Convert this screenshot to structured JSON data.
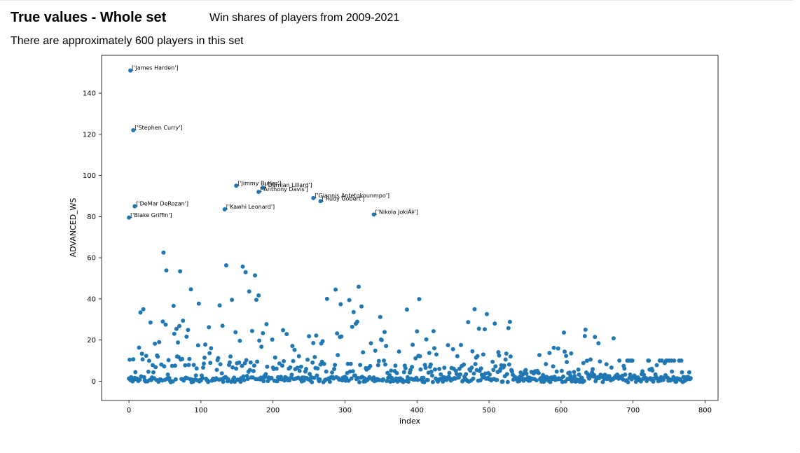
{
  "header": {
    "title": "True values - Whole set",
    "subtitle": "Win shares of players from 2009-2021",
    "description": "There are approximately 600 players in this set"
  },
  "chart_data": {
    "type": "scatter",
    "xlabel": "index",
    "ylabel": "ADVANCED_WS",
    "xlim": [
      -38,
      818
    ],
    "ylim": [
      -9.4,
      158.4
    ],
    "xticks": [
      0,
      100,
      200,
      300,
      400,
      500,
      600,
      700,
      800
    ],
    "yticks": [
      0,
      20,
      40,
      60,
      80,
      100,
      120,
      140
    ],
    "grid": false,
    "point_color": "#1f77b4",
    "annotations": [
      {
        "x": 2,
        "y": 151,
        "label": "['James Harden']"
      },
      {
        "x": 6,
        "y": 122,
        "label": "['Stephen Curry']"
      },
      {
        "x": 8,
        "y": 85,
        "label": "['DeMar DeRozan']"
      },
      {
        "x": 0,
        "y": 79.5,
        "label": "['Blake Griffin']"
      },
      {
        "x": 149,
        "y": 95,
        "label": "['Jimmy Butler']"
      },
      {
        "x": 186,
        "y": 94,
        "label": "['Damian Lillard']"
      },
      {
        "x": 180,
        "y": 92,
        "label": "['Anthony Davis']"
      },
      {
        "x": 133,
        "y": 83.5,
        "label": "['Kawhi Leonard']"
      },
      {
        "x": 256,
        "y": 89,
        "label": "['Giannis Antetokounmpo']"
      },
      {
        "x": 266,
        "y": 87.5,
        "label": "['Rudy Gobert']"
      },
      {
        "x": 340,
        "y": 81,
        "label": "['Nikola JokiÄ‡']"
      }
    ],
    "seed": 20210
  }
}
